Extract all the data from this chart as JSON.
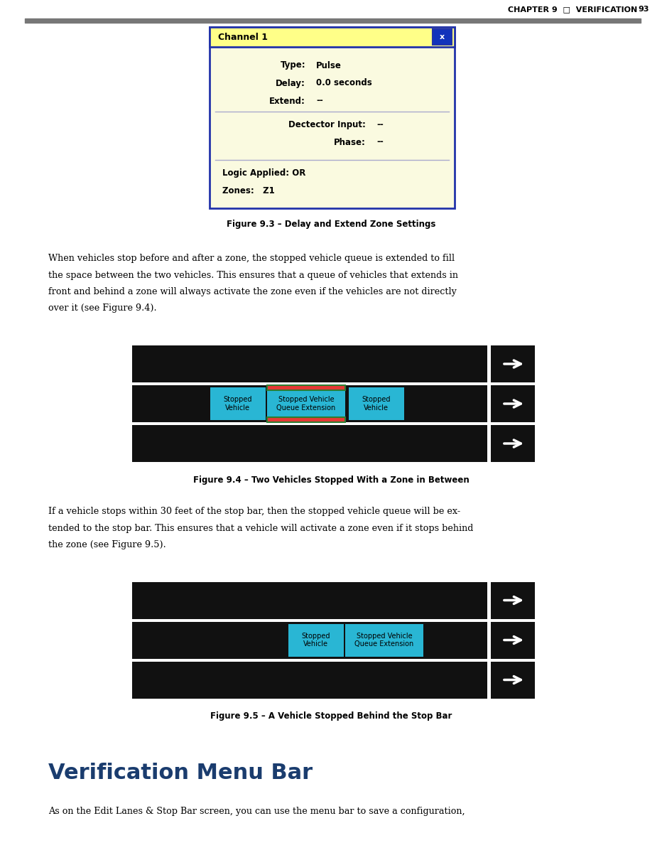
{
  "page_width": 9.32,
  "page_height": 12.17,
  "dpi": 100,
  "bg_color": "#ffffff",
  "header_text": "CHAPTER 9  □  VERIFICATION",
  "header_page_num": "93",
  "fig93_title": "Figure 9.3 – Delay and Extend Zone Settings",
  "dialog_title": "Channel 1",
  "para1_lines": [
    "When vehicles stop before and after a zone, the stopped vehicle queue is extended to fill",
    "the space between the two vehicles. This ensures that a queue of vehicles that extends in",
    "front and behind a zone will always activate the zone even if the vehicles are not directly",
    "over it (see Figure 9.4)."
  ],
  "fig94_title": "Figure 9.4 – Two Vehicles Stopped With a Zone in Between",
  "fig94_labels": [
    "Stopped\nVehicle",
    "Stopped Vehicle\nQueue Extension",
    "Stopped\nVehicle"
  ],
  "para2_lines": [
    "If a vehicle stops within 30 feet of the stop bar, then the stopped vehicle queue will be ex-",
    "tended to the stop bar. This ensures that a vehicle will activate a zone even if it stops behind",
    "the zone (see Figure 9.5)."
  ],
  "fig95_title": "Figure 9.5 – A Vehicle Stopped Behind the Stop Bar",
  "fig95_labels": [
    "Stopped\nVehicle",
    "Stopped Vehicle\nQueue Extension"
  ],
  "section_title": "Verification Menu Bar",
  "section_body": "As on the Edit Lanes & Stop Bar screen, you can use the menu bar to save a configuration,",
  "cyan_color": "#29b6d4",
  "red_color": "#e53935",
  "green_color": "#2e7d32",
  "black_road": "#111111",
  "arrow_color": "#ffffff",
  "dialog_bg": "#fafae0",
  "dialog_border": "#2233aa",
  "dialog_title_bg": "#ffff88",
  "dialog_x_bg": "#1133bb",
  "dialog_sep_color": "#aaaacc",
  "section_title_color": "#1a3c6e"
}
